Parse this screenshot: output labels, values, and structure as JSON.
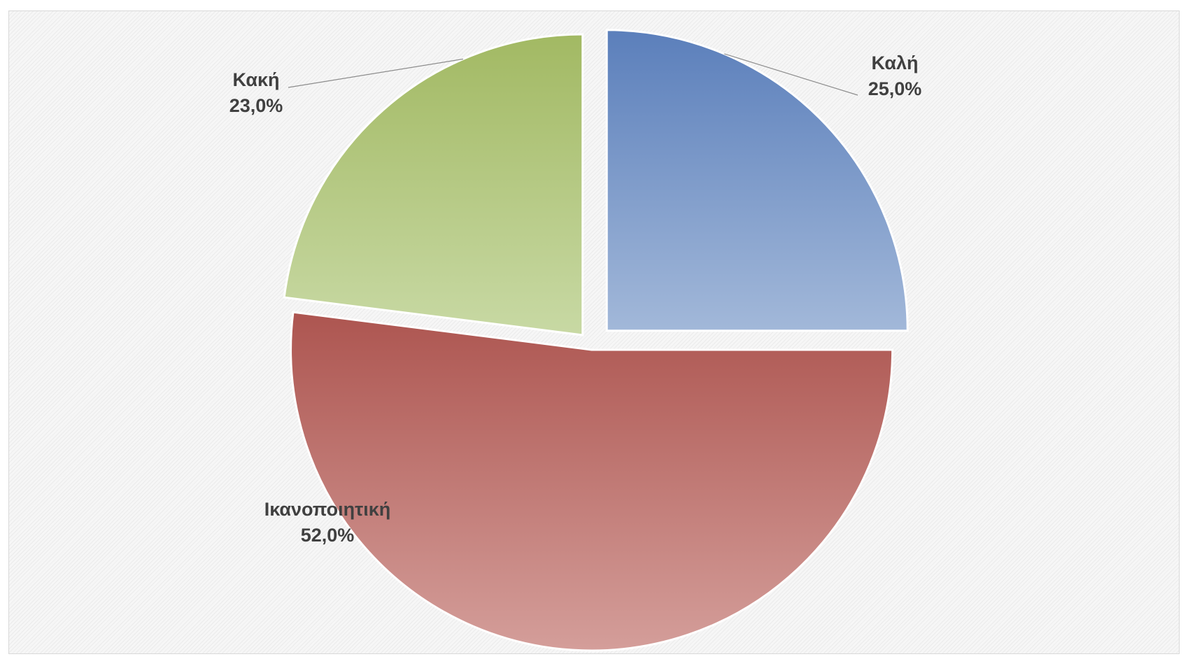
{
  "chart_data": {
    "type": "pie",
    "title": "",
    "slices": [
      {
        "label": "Καλή",
        "value": 25.0,
        "value_label": "25,0%",
        "color_top": "#5b7fbb",
        "color_bottom": "#a2b8d9"
      },
      {
        "label": "Ικανοποιητική",
        "value": 52.0,
        "value_label": "52,0%",
        "color_top": "#ad5550",
        "color_bottom": "#d49e9a"
      },
      {
        "label": "Κακή",
        "value": 23.0,
        "value_label": "23,0%",
        "color_top": "#a2b963",
        "color_bottom": "#c8d9a4"
      }
    ],
    "start_angle_deg": 0,
    "exploded": true,
    "legend": "none"
  }
}
